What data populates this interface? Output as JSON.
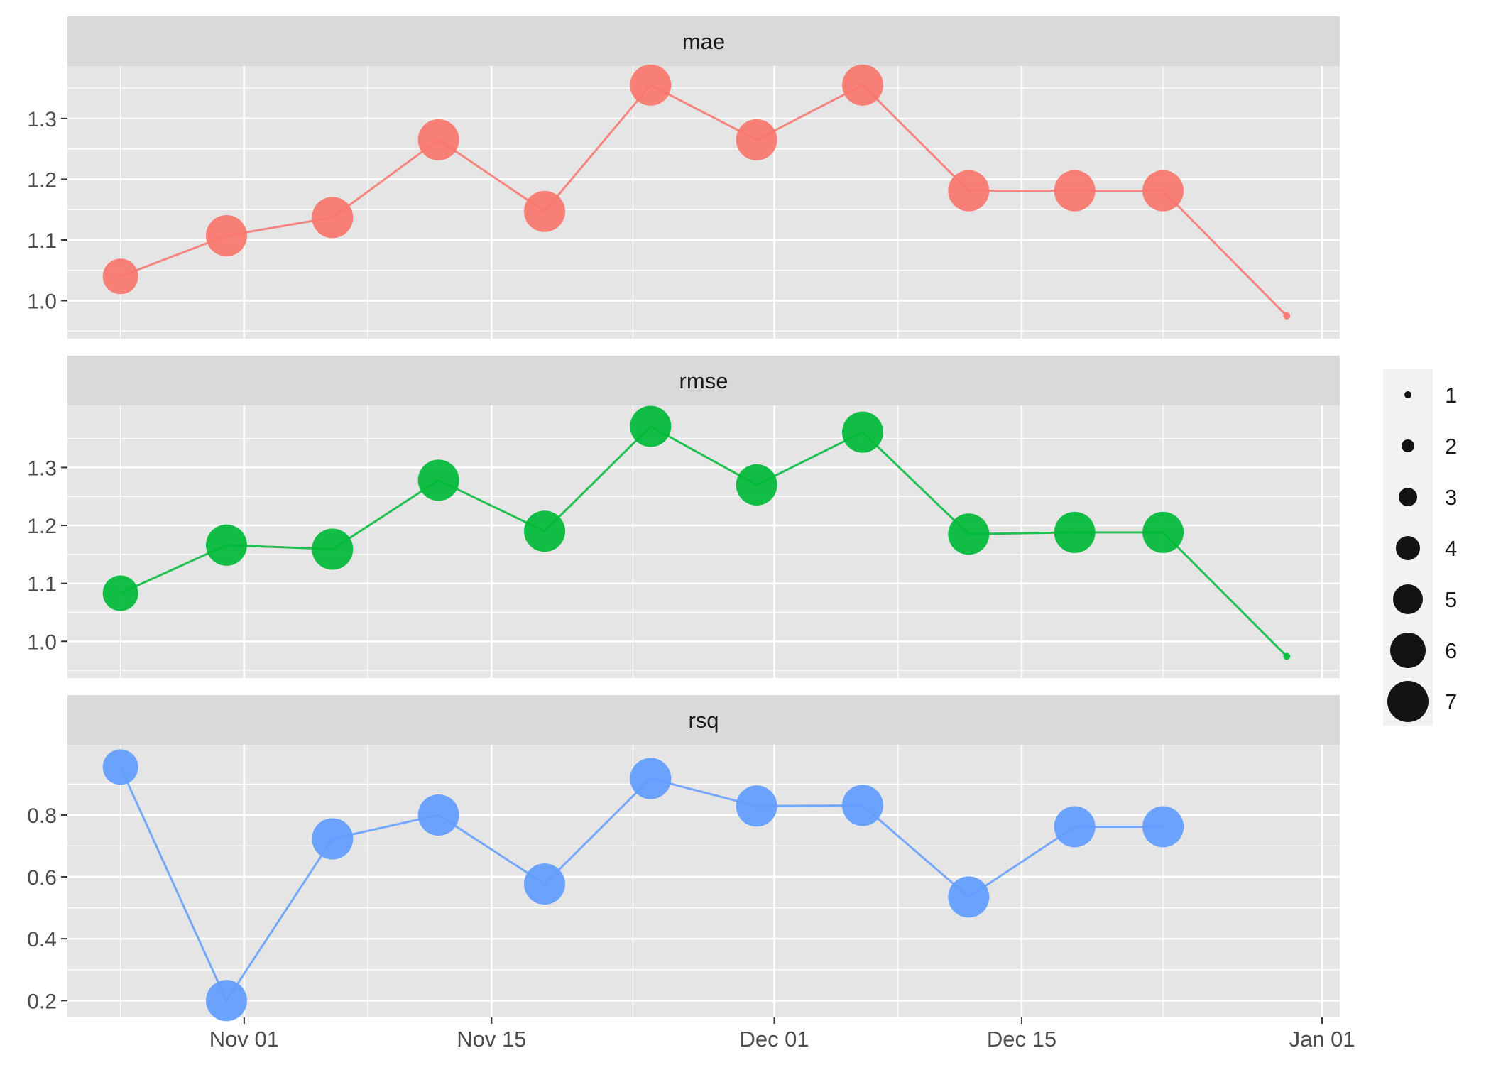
{
  "chart_data": {
    "type": "line",
    "facets": [
      {
        "name": "mae",
        "color": "#F8766D",
        "yticks": [
          1.0,
          1.1,
          1.2,
          1.3
        ],
        "ylim": [
          0.955,
          1.37
        ],
        "x": [
          "2024-10-25",
          "2024-10-31",
          "2024-11-06",
          "2024-11-12",
          "2024-11-18",
          "2024-11-24",
          "2024-11-30",
          "2024-12-06",
          "2024-12-12",
          "2024-12-18",
          "2024-12-23",
          "2024-12-30"
        ],
        "values": [
          1.04,
          1.107,
          1.137,
          1.265,
          1.147,
          1.355,
          1.265,
          1.355,
          1.181,
          1.181,
          1.181,
          0.975
        ],
        "sizes": [
          6,
          7,
          7,
          7,
          7,
          7,
          7,
          7,
          7,
          7,
          7,
          1
        ]
      },
      {
        "name": "rmse",
        "color": "#00BA38",
        "yticks": [
          1.0,
          1.1,
          1.2,
          1.3
        ],
        "ylim": [
          0.955,
          1.39
        ],
        "x": [
          "2024-10-25",
          "2024-10-31",
          "2024-11-06",
          "2024-11-12",
          "2024-11-18",
          "2024-11-24",
          "2024-11-30",
          "2024-12-06",
          "2024-12-12",
          "2024-12-18",
          "2024-12-23",
          "2024-12-30"
        ],
        "values": [
          1.083,
          1.166,
          1.159,
          1.278,
          1.19,
          1.371,
          1.27,
          1.361,
          1.185,
          1.188,
          1.188,
          0.974
        ],
        "sizes": [
          6,
          7,
          7,
          7,
          7,
          7,
          7,
          7,
          7,
          7,
          7,
          1
        ]
      },
      {
        "name": "rsq",
        "color": "#619CFF",
        "yticks": [
          0.2,
          0.4,
          0.6,
          0.8
        ],
        "ylim": [
          0.18,
          0.995
        ],
        "x": [
          "2024-10-25",
          "2024-10-31",
          "2024-11-06",
          "2024-11-12",
          "2024-11-18",
          "2024-11-24",
          "2024-11-30",
          "2024-12-06",
          "2024-12-12",
          "2024-12-18",
          "2024-12-23"
        ],
        "values": [
          0.955,
          0.2,
          0.723,
          0.8,
          0.577,
          0.918,
          0.829,
          0.831,
          0.535,
          0.762,
          0.762
        ],
        "sizes": [
          6,
          7,
          7,
          7,
          7,
          7,
          7,
          7,
          7,
          7,
          7
        ]
      }
    ],
    "x_axis": {
      "type": "date",
      "range": [
        "2024-10-22",
        "2025-01-02"
      ],
      "ticks": [
        {
          "date": "2024-11-01",
          "label": "Nov 01"
        },
        {
          "date": "2024-11-15",
          "label": "Nov 15"
        },
        {
          "date": "2024-12-01",
          "label": "Dec 01"
        },
        {
          "date": "2024-12-15",
          "label": "Dec 15"
        },
        {
          "date": "2025-01-01",
          "label": "Jan 01"
        }
      ],
      "minor_ticks": [
        "2024-10-25",
        "2024-11-08",
        "2024-11-23",
        "2024-12-08",
        "2024-12-23"
      ]
    },
    "legend": {
      "placement": "right",
      "title": "",
      "entries": [
        "1",
        "2",
        "3",
        "4",
        "5",
        "6",
        "7"
      ],
      "sizes": [
        1,
        2,
        3,
        4,
        5,
        6,
        7
      ]
    },
    "grid": true,
    "colors": {
      "panel_background": "#E5E5E5",
      "strip_background": "#D9D9D9",
      "grid": "#FFFFFF",
      "text": "#4D4D4D",
      "legend_point": "#000000"
    }
  }
}
